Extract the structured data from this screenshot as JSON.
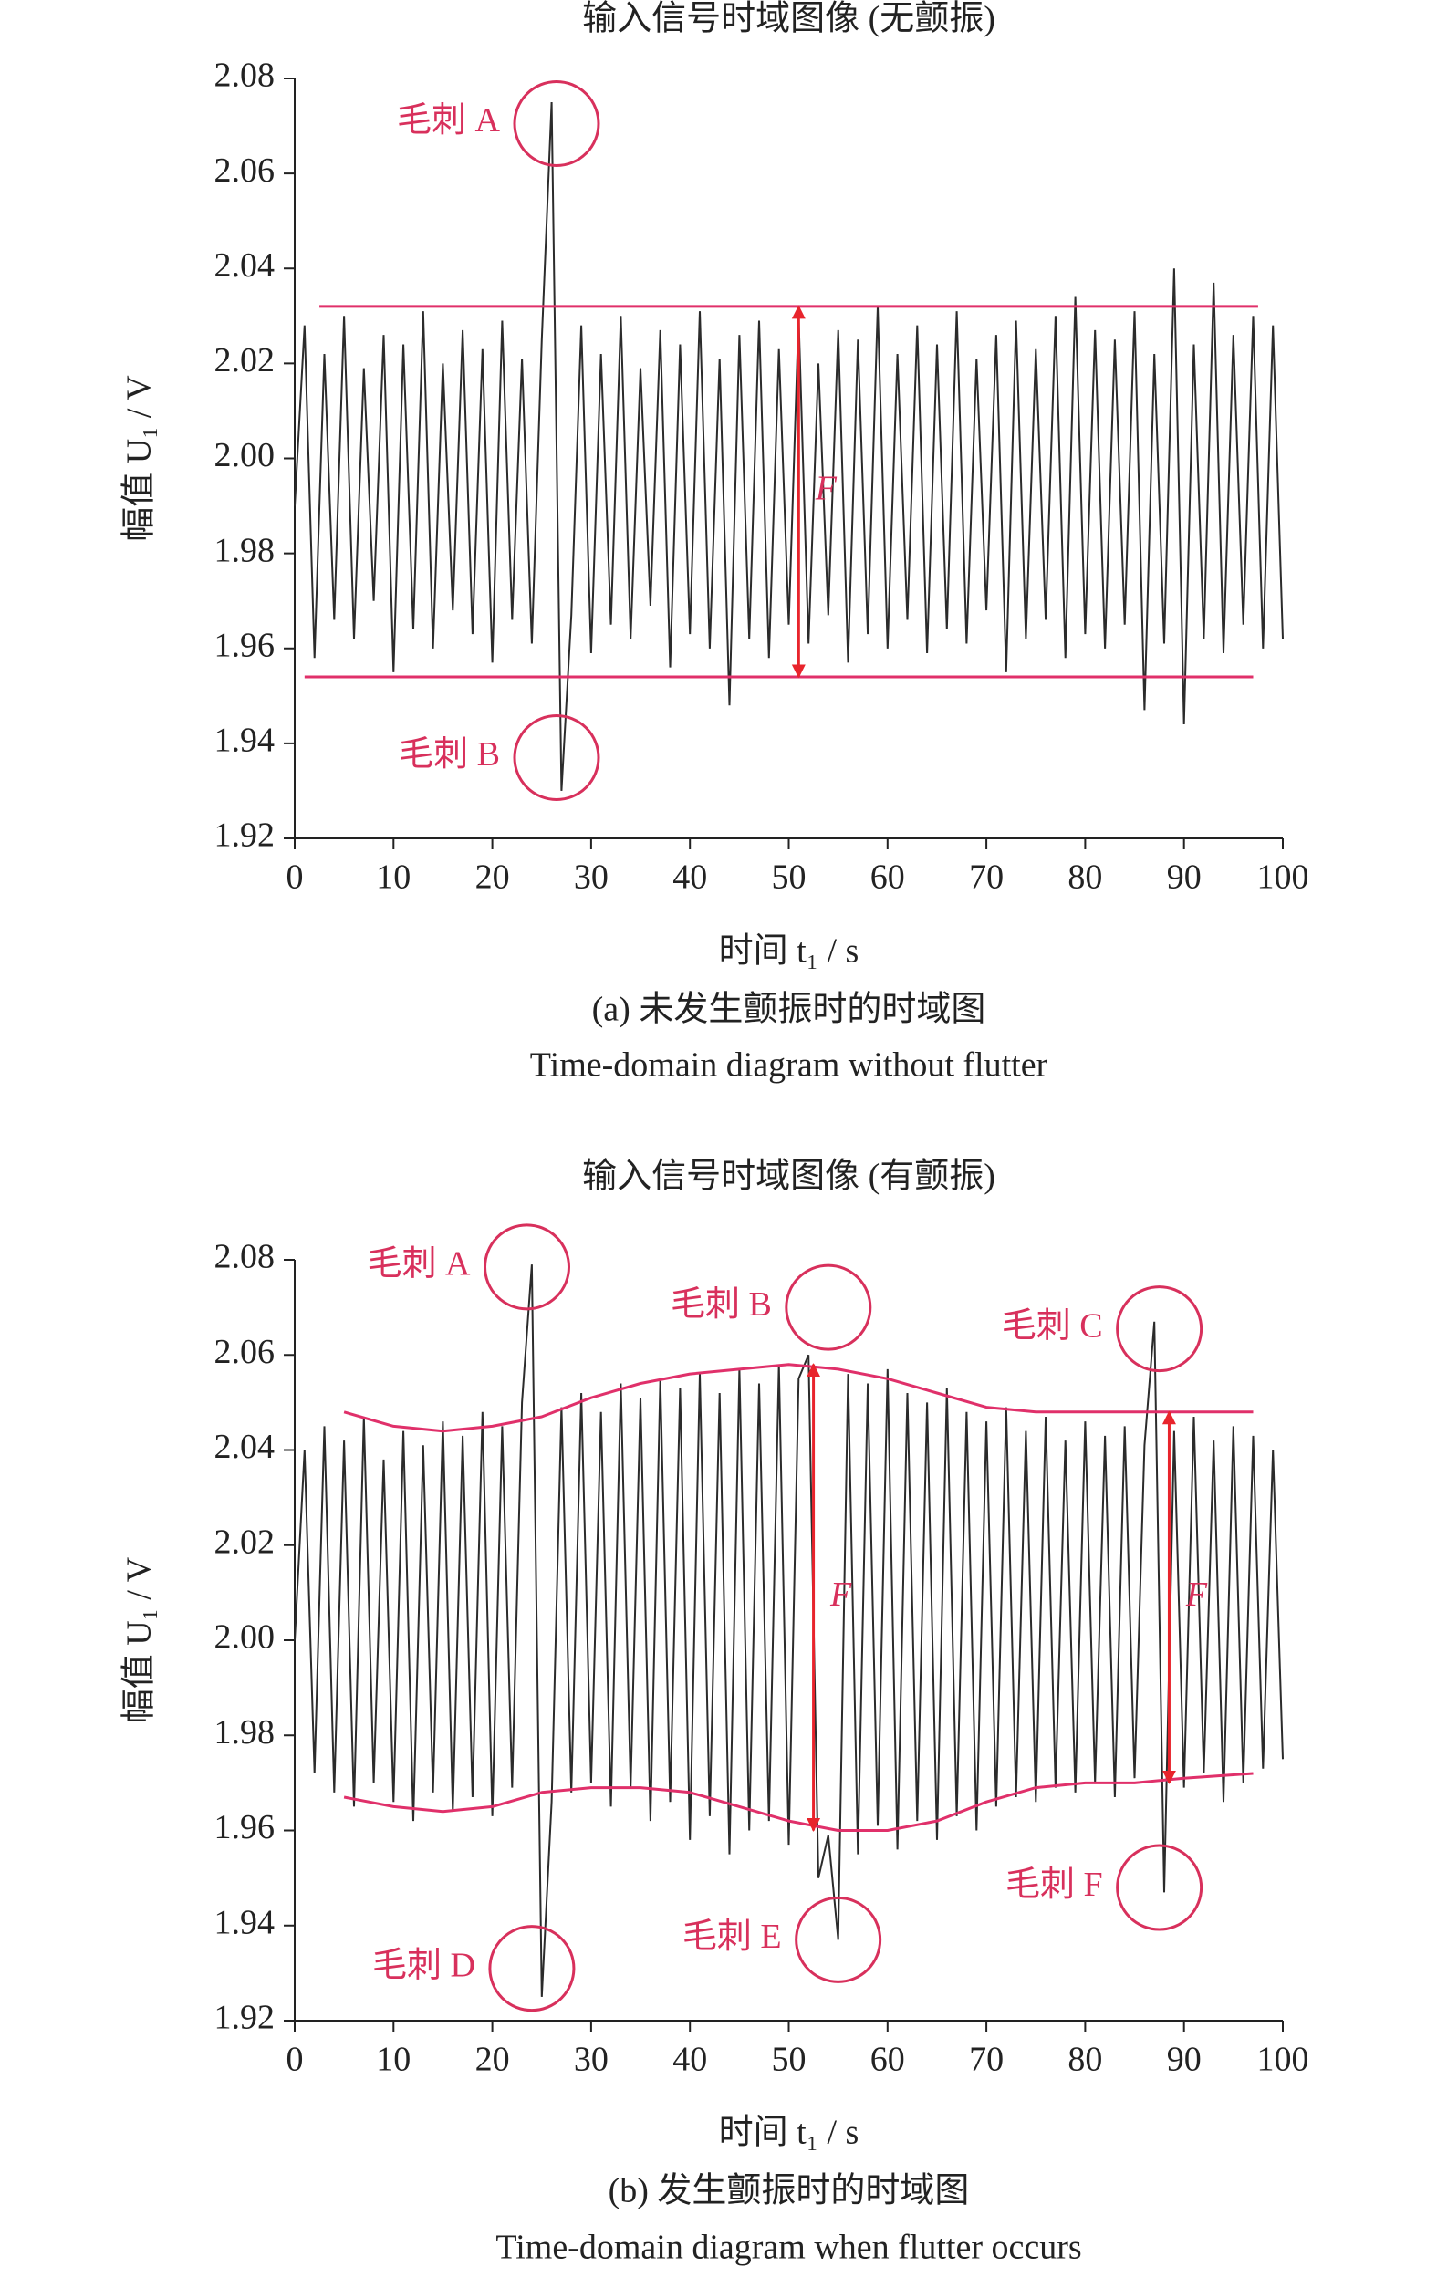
{
  "chart_data": [
    {
      "type": "line",
      "title": "输入信号时域图像 (无颤振)",
      "x_label": "时间 t₁ / s",
      "y_label": "幅值 U₁ / V",
      "caption": "(a) 未发生颤振时的时域图",
      "caption_en": "Time-domain diagram without flutter",
      "color": "#2b2b2b",
      "xlim": [
        0,
        100
      ],
      "ylim": [
        1.92,
        2.08
      ],
      "xticks": [
        0,
        10,
        20,
        30,
        40,
        50,
        60,
        70,
        80,
        90,
        100
      ],
      "yticks": [
        1.92,
        1.94,
        1.96,
        1.98,
        {
          "value": 2,
          "label": "2.00"
        },
        2.02,
        2.04,
        2.06,
        2.08
      ],
      "x": [
        0,
        1,
        2,
        3,
        4,
        5,
        6,
        7,
        8,
        9,
        10,
        11,
        12,
        13,
        14,
        15,
        16,
        17,
        18,
        19,
        20,
        21,
        22,
        23,
        24,
        25,
        26,
        27,
        28,
        29,
        30,
        31,
        32,
        33,
        34,
        35,
        36,
        37,
        38,
        39,
        40,
        41,
        42,
        43,
        44,
        45,
        46,
        47,
        48,
        49,
        50,
        51,
        52,
        53,
        54,
        55,
        56,
        57,
        58,
        59,
        60,
        61,
        62,
        63,
        64,
        65,
        66,
        67,
        68,
        69,
        70,
        71,
        72,
        73,
        74,
        75,
        76,
        77,
        78,
        79,
        80,
        81,
        82,
        83,
        84,
        85,
        86,
        87,
        88,
        89,
        90,
        91,
        92,
        93,
        94,
        95,
        96,
        97,
        98,
        99,
        100
      ],
      "values": [
        1.99,
        2.028,
        1.958,
        2.022,
        1.966,
        2.03,
        1.962,
        2.019,
        1.97,
        2.026,
        1.955,
        2.024,
        1.964,
        2.031,
        1.96,
        2.02,
        1.968,
        2.027,
        1.963,
        2.023,
        1.957,
        2.029,
        1.966,
        2.021,
        1.961,
        2.025,
        2.075,
        1.93,
        1.967,
        2.028,
        1.959,
        2.022,
        1.965,
        2.03,
        1.962,
        2.019,
        1.969,
        2.027,
        1.956,
        2.024,
        1.963,
        2.031,
        1.96,
        2.021,
        1.948,
        2.026,
        1.962,
        2.029,
        1.958,
        2.023,
        1.965,
        2.03,
        1.961,
        2.02,
        1.967,
        2.027,
        1.957,
        2.025,
        1.963,
        2.032,
        1.96,
        2.022,
        1.966,
        2.028,
        1.959,
        2.024,
        1.964,
        2.031,
        1.961,
        2.021,
        1.968,
        2.026,
        1.955,
        2.029,
        1.962,
        2.023,
        1.966,
        2.03,
        1.958,
        2.034,
        1.963,
        2.027,
        1.96,
        2.025,
        1.965,
        2.031,
        1.947,
        2.022,
        1.961,
        2.04,
        1.944,
        2.024,
        1.962,
        2.037,
        1.959,
        2.026,
        1.965,
        2.03,
        1.96,
        2.028,
        1.962
      ],
      "ref_lines": [
        {
          "value": 2.032,
          "x": [
            2.5,
            97.5
          ]
        },
        {
          "value": 1.954,
          "x": [
            1,
            97
          ]
        }
      ],
      "arrows": [
        {
          "x": 51,
          "from": 1.954,
          "to": 2.032,
          "label": "F"
        }
      ],
      "annotations": [
        {
          "text": "毛刺 A",
          "x": 26.5,
          "y": 2.0705
        },
        {
          "text": "毛刺 B",
          "x": 26.5,
          "y": 1.937
        }
      ]
    },
    {
      "type": "line",
      "title": "输入信号时域图像 (有颤振)",
      "x_label": "时间 t₁ / s",
      "y_label": "幅值 U₁ / V",
      "caption": "(b) 发生颤振时的时域图",
      "caption_en": "Time-domain diagram when flutter occurs",
      "color": "#2b2b2b",
      "xlim": [
        0,
        100
      ],
      "ylim": [
        1.92,
        2.08
      ],
      "xticks": [
        0,
        10,
        20,
        30,
        40,
        50,
        60,
        70,
        80,
        90,
        100
      ],
      "yticks": [
        1.92,
        1.94,
        1.96,
        1.98,
        {
          "value": 2,
          "label": "2.00"
        },
        2.02,
        2.04,
        2.06,
        2.08
      ],
      "x": [
        0,
        1,
        2,
        3,
        4,
        5,
        6,
        7,
        8,
        9,
        10,
        11,
        12,
        13,
        14,
        15,
        16,
        17,
        18,
        19,
        20,
        21,
        22,
        23,
        24,
        25,
        26,
        27,
        28,
        29,
        30,
        31,
        32,
        33,
        34,
        35,
        36,
        37,
        38,
        39,
        40,
        41,
        42,
        43,
        44,
        45,
        46,
        47,
        48,
        49,
        50,
        51,
        52,
        53,
        54,
        55,
        56,
        57,
        58,
        59,
        60,
        61,
        62,
        63,
        64,
        65,
        66,
        67,
        68,
        69,
        70,
        71,
        72,
        73,
        74,
        75,
        76,
        77,
        78,
        79,
        80,
        81,
        82,
        83,
        84,
        85,
        86,
        87,
        88,
        89,
        90,
        91,
        92,
        93,
        94,
        95,
        96,
        97,
        98,
        99,
        100
      ],
      "values": [
        2.0,
        2.04,
        1.972,
        2.045,
        1.968,
        2.042,
        1.965,
        2.047,
        1.97,
        2.038,
        1.966,
        2.044,
        1.962,
        2.041,
        1.968,
        2.046,
        1.964,
        2.043,
        1.967,
        2.048,
        1.963,
        2.045,
        1.969,
        2.05,
        2.079,
        1.925,
        1.966,
        2.049,
        1.968,
        2.052,
        1.97,
        2.048,
        1.965,
        2.054,
        1.969,
        2.051,
        1.962,
        2.055,
        1.966,
        2.053,
        1.958,
        2.056,
        1.963,
        2.052,
        1.955,
        2.057,
        1.96,
        2.054,
        1.962,
        2.058,
        1.957,
        2.055,
        2.06,
        1.95,
        1.959,
        1.937,
        2.056,
        1.955,
        2.054,
        1.961,
        2.057,
        1.956,
        2.052,
        1.962,
        2.05,
        1.958,
        2.053,
        1.963,
        2.048,
        1.96,
        2.046,
        1.965,
        2.049,
        1.967,
        2.044,
        1.966,
        2.047,
        1.969,
        2.042,
        1.968,
        2.046,
        1.97,
        2.043,
        1.967,
        2.045,
        1.971,
        2.041,
        2.067,
        1.947,
        2.044,
        1.969,
        2.047,
        1.972,
        2.042,
        1.966,
        2.045,
        1.97,
        2.043,
        1.973,
        2.04,
        1.975
      ],
      "envelope_x": [
        5,
        10,
        15,
        20,
        25,
        30,
        35,
        40,
        45,
        50,
        55,
        60,
        65,
        70,
        75,
        80,
        85,
        90,
        97
      ],
      "upper_envelope": [
        2.048,
        2.045,
        2.044,
        2.045,
        2.047,
        2.051,
        2.054,
        2.056,
        2.057,
        2.058,
        2.057,
        2.055,
        2.052,
        2.049,
        2.048,
        2.048,
        2.048,
        2.048,
        2.048
      ],
      "lower_envelope": [
        1.967,
        1.965,
        1.964,
        1.965,
        1.968,
        1.969,
        1.969,
        1.968,
        1.965,
        1.962,
        1.96,
        1.96,
        1.962,
        1.966,
        1.969,
        1.97,
        1.97,
        1.971,
        1.972
      ],
      "arrows": [
        {
          "x": 52.5,
          "from": 1.96,
          "to": 2.058,
          "label": "F"
        },
        {
          "x": 88.5,
          "from": 1.97,
          "to": 2.048,
          "label": "F"
        }
      ],
      "annotations": [
        {
          "text": "毛刺 A",
          "x": 23.5,
          "y": 2.0785
        },
        {
          "text": "毛刺 B",
          "x": 54,
          "y": 2.07
        },
        {
          "text": "毛刺 C",
          "x": 87.5,
          "y": 2.0655
        },
        {
          "text": "毛刺 D",
          "x": 24,
          "y": 1.931
        },
        {
          "text": "毛刺 E",
          "x": 55,
          "y": 1.937
        },
        {
          "text": "毛刺 F",
          "x": 87.5,
          "y": 1.948
        }
      ]
    }
  ]
}
